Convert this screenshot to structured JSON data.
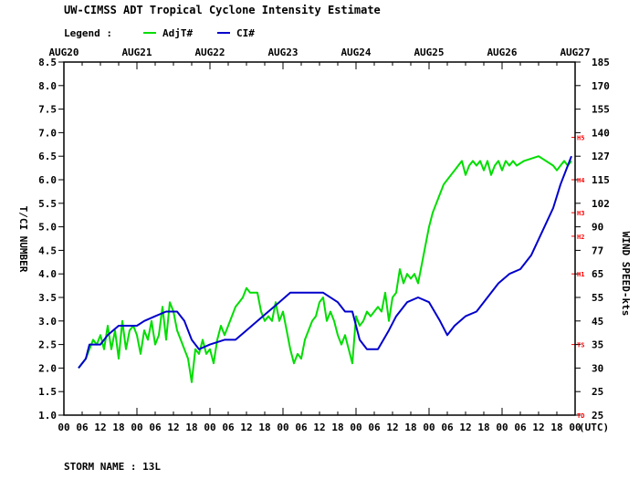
{
  "title": "UW-CIMSS ADT Tropical Cyclone Intensity Estimate",
  "legend": {
    "label": "Legend :",
    "items": [
      {
        "name": "AdjT#",
        "color": "#00dd00"
      },
      {
        "name": "CI#",
        "color": "#0000cc"
      }
    ]
  },
  "footer": "STORM NAME : 13L",
  "chart_data": {
    "type": "line",
    "top_date_labels": [
      "AUG20",
      "AUG21",
      "AUG22",
      "AUG23",
      "AUG24",
      "AUG25",
      "AUG26",
      "AUG27"
    ],
    "bottom_tick_labels": [
      "00",
      "06",
      "12",
      "18",
      "00",
      "06",
      "12",
      "18",
      "00",
      "06",
      "12",
      "18",
      "00",
      "06",
      "12",
      "18",
      "00",
      "06",
      "12",
      "18",
      "00",
      "06",
      "12",
      "18",
      "00",
      "06",
      "12",
      "18",
      "00"
    ],
    "utc_label": "(UTC)",
    "ylabel": "T/CI NUMBER",
    "y2label": "WIND SPEED-kts",
    "ylim": [
      1.0,
      8.5
    ],
    "y_ticks": [
      "1.0",
      "1.5",
      "2.0",
      "2.5",
      "3.0",
      "3.5",
      "4.0",
      "4.5",
      "5.0",
      "5.5",
      "6.0",
      "6.5",
      "7.0",
      "7.5",
      "8.0",
      "8.5"
    ],
    "wind_ticks": [
      {
        "t": 1.0,
        "label": "25"
      },
      {
        "t": 1.5,
        "label": "25"
      },
      {
        "t": 2.0,
        "label": "30"
      },
      {
        "t": 2.5,
        "label": "35"
      },
      {
        "t": 3.0,
        "label": "45"
      },
      {
        "t": 3.5,
        "label": "55"
      },
      {
        "t": 4.0,
        "label": "65"
      },
      {
        "t": 4.5,
        "label": "77"
      },
      {
        "t": 5.0,
        "label": "90"
      },
      {
        "t": 5.5,
        "label": "102"
      },
      {
        "t": 6.0,
        "label": "115"
      },
      {
        "t": 6.5,
        "label": "127"
      },
      {
        "t": 7.0,
        "label": "140"
      },
      {
        "t": 7.5,
        "label": "155"
      },
      {
        "t": 8.0,
        "label": "170"
      },
      {
        "t": 8.5,
        "label": "185"
      }
    ],
    "category_markers": [
      {
        "label": "TD",
        "t": 1.0
      },
      {
        "label": "TS",
        "t": 2.5
      },
      {
        "label": "H1",
        "t": 4.0
      },
      {
        "label": "H2",
        "t": 4.8
      },
      {
        "label": "H3",
        "t": 5.3
      },
      {
        "label": "H4",
        "t": 6.0
      },
      {
        "label": "H5",
        "t": 6.9
      }
    ],
    "series": [
      {
        "name": "AdjT#",
        "color": "#00dd00",
        "x": [
          0.2,
          0.3,
          0.4,
          0.45,
          0.5,
          0.55,
          0.6,
          0.65,
          0.7,
          0.75,
          0.8,
          0.85,
          0.9,
          0.95,
          1.0,
          1.05,
          1.1,
          1.15,
          1.2,
          1.25,
          1.3,
          1.35,
          1.4,
          1.45,
          1.5,
          1.55,
          1.6,
          1.65,
          1.7,
          1.75,
          1.8,
          1.85,
          1.9,
          1.95,
          2.0,
          2.05,
          2.1,
          2.15,
          2.2,
          2.25,
          2.3,
          2.35,
          2.4,
          2.45,
          2.5,
          2.55,
          2.6,
          2.65,
          2.7,
          2.75,
          2.8,
          2.85,
          2.9,
          2.95,
          3.0,
          3.05,
          3.1,
          3.15,
          3.2,
          3.25,
          3.3,
          3.35,
          3.4,
          3.45,
          3.5,
          3.55,
          3.6,
          3.65,
          3.7,
          3.75,
          3.8,
          3.85,
          3.9,
          3.95,
          4.0,
          4.05,
          4.1,
          4.15,
          4.2,
          4.25,
          4.3,
          4.35,
          4.4,
          4.45,
          4.5,
          4.55,
          4.6,
          4.65,
          4.7,
          4.75,
          4.8,
          4.85,
          4.9,
          4.95,
          5.0,
          5.05,
          5.1,
          5.15,
          5.2,
          5.25,
          5.3,
          5.35,
          5.4,
          5.45,
          5.5,
          5.55,
          5.6,
          5.65,
          5.7,
          5.75,
          5.8,
          5.85,
          5.9,
          5.95,
          6.0,
          6.05,
          6.1,
          6.15,
          6.2,
          6.3,
          6.5,
          6.7,
          6.75,
          6.8,
          6.85,
          6.9,
          6.95
        ],
        "y": [
          2.0,
          2.2,
          2.6,
          2.5,
          2.7,
          2.4,
          2.9,
          2.4,
          2.8,
          2.2,
          3.0,
          2.4,
          2.8,
          2.9,
          2.7,
          2.3,
          2.8,
          2.6,
          3.0,
          2.5,
          2.7,
          3.3,
          2.6,
          3.4,
          3.2,
          2.8,
          2.6,
          2.4,
          2.2,
          1.7,
          2.4,
          2.3,
          2.6,
          2.3,
          2.4,
          2.1,
          2.6,
          2.9,
          2.7,
          2.9,
          3.1,
          3.3,
          3.4,
          3.5,
          3.7,
          3.6,
          3.6,
          3.6,
          3.2,
          3.0,
          3.1,
          3.0,
          3.4,
          3.0,
          3.2,
          2.8,
          2.4,
          2.1,
          2.3,
          2.2,
          2.6,
          2.8,
          3.0,
          3.1,
          3.4,
          3.5,
          3.0,
          3.2,
          3.0,
          2.7,
          2.5,
          2.7,
          2.4,
          2.1,
          3.1,
          2.9,
          3.0,
          3.2,
          3.1,
          3.2,
          3.3,
          3.2,
          3.6,
          3.0,
          3.5,
          3.6,
          4.1,
          3.8,
          4.0,
          3.9,
          4.0,
          3.8,
          4.2,
          4.6,
          5.0,
          5.3,
          5.5,
          5.7,
          5.9,
          6.0,
          6.1,
          6.2,
          6.3,
          6.4,
          6.1,
          6.3,
          6.4,
          6.3,
          6.4,
          6.2,
          6.4,
          6.1,
          6.3,
          6.4,
          6.2,
          6.4,
          6.3,
          6.4,
          6.3,
          6.4,
          6.5,
          6.3,
          6.2,
          6.3,
          6.4,
          6.3,
          6.4
        ]
      },
      {
        "name": "CI#",
        "color": "#0000cc",
        "x": [
          0.2,
          0.3,
          0.35,
          0.5,
          0.6,
          0.75,
          0.85,
          1.0,
          1.1,
          1.25,
          1.4,
          1.55,
          1.65,
          1.75,
          1.85,
          2.0,
          2.2,
          2.35,
          2.5,
          2.65,
          2.8,
          2.95,
          3.1,
          3.25,
          3.4,
          3.55,
          3.75,
          3.85,
          3.95,
          4.05,
          4.15,
          4.3,
          4.45,
          4.55,
          4.7,
          4.85,
          5.0,
          5.15,
          5.25,
          5.35,
          5.5,
          5.65,
          5.8,
          5.95,
          6.1,
          6.25,
          6.4,
          6.55,
          6.7,
          6.8,
          6.9,
          6.95
        ],
        "y": [
          2.0,
          2.2,
          2.5,
          2.5,
          2.7,
          2.9,
          2.9,
          2.9,
          3.0,
          3.1,
          3.2,
          3.2,
          3.0,
          2.6,
          2.4,
          2.5,
          2.6,
          2.6,
          2.8,
          3.0,
          3.2,
          3.4,
          3.6,
          3.6,
          3.6,
          3.6,
          3.4,
          3.2,
          3.2,
          2.6,
          2.4,
          2.4,
          2.8,
          3.1,
          3.4,
          3.5,
          3.4,
          3.0,
          2.7,
          2.9,
          3.1,
          3.2,
          3.5,
          3.8,
          4.0,
          4.1,
          4.4,
          4.9,
          5.4,
          5.9,
          6.3,
          6.5
        ]
      }
    ]
  }
}
